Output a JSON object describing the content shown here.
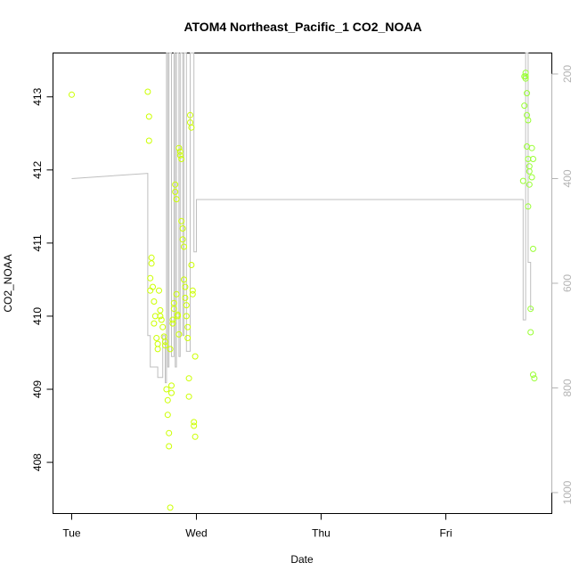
{
  "chart_data": {
    "type": "scatter",
    "title": "ATOM4 Northeast_Pacific_1 CO2_NOAA",
    "xlabel": "Date",
    "ylabel": "CO2_NOAA",
    "x_ticks": [
      {
        "label": "Tue",
        "day": 0
      },
      {
        "label": "Wed",
        "day": 1
      },
      {
        "label": "Thu",
        "day": 2
      },
      {
        "label": "Fri",
        "day": 3
      }
    ],
    "xlim_days": [
      -0.15,
      3.85
    ],
    "ylim": [
      407.3,
      413.6
    ],
    "y_ticks": [
      408,
      409,
      410,
      411,
      412,
      413
    ],
    "y2_ticks": [
      200,
      400,
      600,
      800,
      1000
    ],
    "y2lim": [
      1040,
      160
    ],
    "colors": {
      "points_early": "#ccff00",
      "points_late": "#99ff33",
      "pressure_line": "#bfbfbf",
      "right_axis": "#b3b3b3"
    },
    "series": [
      {
        "type": "scatter",
        "x_days": [
          0.0,
          0.61,
          0.62,
          0.62,
          0.63,
          0.63,
          0.64,
          0.64,
          0.65,
          0.66,
          0.66,
          0.67,
          0.68,
          0.69,
          0.69,
          0.7,
          0.71,
          0.71,
          0.72,
          0.73,
          0.74,
          0.75,
          0.75,
          0.76,
          0.77,
          0.77,
          0.78,
          0.78,
          0.79,
          0.79,
          0.8,
          0.8,
          0.81,
          0.81,
          0.82,
          0.82,
          0.83,
          0.83,
          0.84,
          0.84,
          0.85,
          0.85,
          0.86,
          0.86,
          0.87,
          0.87,
          0.88,
          0.88,
          0.89,
          0.89,
          0.9,
          0.9,
          0.91,
          0.91,
          0.92,
          0.92,
          0.93,
          0.93,
          0.94,
          0.94,
          0.95,
          0.95,
          0.96,
          0.96,
          0.97,
          0.97,
          0.98,
          0.98,
          0.99,
          0.99
        ],
        "y": [
          413.03,
          413.07,
          412.73,
          412.4,
          410.35,
          410.52,
          410.8,
          410.72,
          410.4,
          410.2,
          409.9,
          410.0,
          409.7,
          409.55,
          409.62,
          410.35,
          410.08,
          410.0,
          409.95,
          409.85,
          409.72,
          409.6,
          409.65,
          409.0,
          408.85,
          408.65,
          408.4,
          408.22,
          407.38,
          409.55,
          409.05,
          408.95,
          409.9,
          409.95,
          410.1,
          410.18,
          411.8,
          411.7,
          411.6,
          410.3,
          410.02,
          410.0,
          409.75,
          412.3,
          412.25,
          412.2,
          412.15,
          411.3,
          411.2,
          411.05,
          410.95,
          410.5,
          410.4,
          410.25,
          410.15,
          410.0,
          409.85,
          409.7,
          409.15,
          408.9,
          412.75,
          412.65,
          412.58,
          410.7,
          410.35,
          410.3,
          408.55,
          408.5,
          408.35,
          409.45
        ]
      },
      {
        "type": "scatter",
        "x_days": [
          3.62,
          3.63,
          3.63,
          3.64,
          3.64,
          3.64,
          3.65,
          3.65,
          3.65,
          3.66,
          3.66,
          3.66,
          3.67,
          3.67,
          3.67,
          3.68,
          3.68,
          3.69,
          3.69,
          3.7,
          3.7,
          3.7,
          3.71
        ],
        "y": [
          411.85,
          412.88,
          413.28,
          413.25,
          413.33,
          413.28,
          412.32,
          413.05,
          412.75,
          412.68,
          411.5,
          412.15,
          411.98,
          412.05,
          411.8,
          409.78,
          410.1,
          412.3,
          411.9,
          412.15,
          410.92,
          409.2,
          409.15
        ]
      },
      {
        "type": "line",
        "name": "",
        "x_days": [
          0.0,
          0.61,
          0.61,
          0.63,
          0.63,
          0.66,
          0.66,
          0.69,
          0.69,
          0.73,
          0.73,
          0.75,
          0.75,
          0.76,
          0.76,
          0.77,
          0.77,
          0.78,
          0.78,
          0.8,
          0.8,
          0.82,
          0.82,
          0.83,
          0.83,
          0.84,
          0.84,
          0.86,
          0.86,
          0.87,
          0.87,
          0.89,
          0.89,
          0.9,
          0.9,
          0.92,
          0.92,
          0.95,
          0.95,
          0.98,
          0.98,
          1.0,
          1.0,
          3.62,
          3.62,
          3.64,
          3.64,
          3.66,
          3.66,
          3.68,
          3.68,
          3.7
        ],
        "y2": [
          400,
          390,
          700,
          700,
          760,
          760,
          760,
          760,
          780,
          780,
          700,
          700,
          790,
          790,
          160,
          160,
          760,
          760,
          160,
          160,
          740,
          740,
          160,
          160,
          760,
          760,
          160,
          160,
          740,
          740,
          160,
          160,
          700,
          700,
          160,
          160,
          730,
          730,
          160,
          160,
          540,
          540,
          440,
          440,
          670,
          670,
          160,
          160,
          560,
          560,
          650,
          650
        ]
      }
    ]
  }
}
